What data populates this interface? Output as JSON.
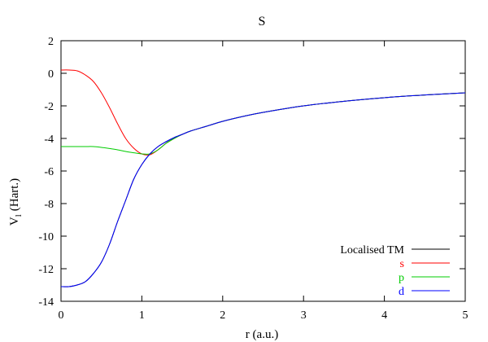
{
  "chart_data": {
    "type": "line",
    "title": "S",
    "xlabel": "r (a.u.)",
    "ylabel": "V",
    "ylabel_sub": "l",
    "ylabel_suffix": "(Hart.)",
    "xlim": [
      0,
      5
    ],
    "ylim": [
      -14,
      2
    ],
    "xticks": [
      0,
      1,
      2,
      3,
      4,
      5
    ],
    "yticks": [
      2,
      0,
      -2,
      -4,
      -6,
      -8,
      -10,
      -12,
      -14
    ],
    "grid": false,
    "legend": "bottom-right",
    "x": [
      0,
      0.1,
      0.2,
      0.3,
      0.4,
      0.5,
      0.6,
      0.7,
      0.8,
      0.9,
      1.0,
      1.1,
      1.2,
      1.3,
      1.4,
      1.5,
      1.6,
      1.8,
      2.0,
      2.25,
      2.5,
      3.0,
      3.5,
      4.0,
      4.5,
      5.0
    ],
    "series": [
      {
        "name": "Localised TM",
        "color": "#000000",
        "values": [
          -13.1,
          -13.1,
          -13.0,
          -12.8,
          -12.3,
          -11.6,
          -10.5,
          -9.1,
          -7.8,
          -6.5,
          -5.6,
          -4.95,
          -4.5,
          -4.2,
          -3.95,
          -3.75,
          -3.55,
          -3.25,
          -2.95,
          -2.65,
          -2.4,
          -2.0,
          -1.72,
          -1.5,
          -1.33,
          -1.2
        ]
      },
      {
        "name": "s",
        "color": "#ff0000",
        "values": [
          0.2,
          0.2,
          0.15,
          -0.1,
          -0.5,
          -1.2,
          -2.1,
          -3.1,
          -4.0,
          -4.6,
          -4.95,
          -5.0,
          -4.7,
          -4.3,
          -4.0,
          -3.75,
          -3.55,
          -3.25,
          -2.95,
          -2.65,
          -2.4,
          -2.0,
          -1.72,
          -1.5,
          -1.33,
          -1.2
        ]
      },
      {
        "name": "p",
        "color": "#00cc00",
        "values": [
          -4.5,
          -4.5,
          -4.5,
          -4.5,
          -4.5,
          -4.55,
          -4.62,
          -4.7,
          -4.8,
          -4.88,
          -4.95,
          -4.95,
          -4.7,
          -4.3,
          -4.0,
          -3.75,
          -3.55,
          -3.25,
          -2.95,
          -2.65,
          -2.4,
          -2.0,
          -1.72,
          -1.5,
          -1.33,
          -1.2
        ]
      },
      {
        "name": "d",
        "color": "#0000ff",
        "values": [
          -13.1,
          -13.1,
          -13.0,
          -12.8,
          -12.3,
          -11.6,
          -10.5,
          -9.1,
          -7.8,
          -6.5,
          -5.6,
          -4.95,
          -4.5,
          -4.2,
          -3.95,
          -3.75,
          -3.55,
          -3.25,
          -2.95,
          -2.65,
          -2.4,
          -2.0,
          -1.72,
          -1.5,
          -1.33,
          -1.2
        ]
      }
    ]
  }
}
